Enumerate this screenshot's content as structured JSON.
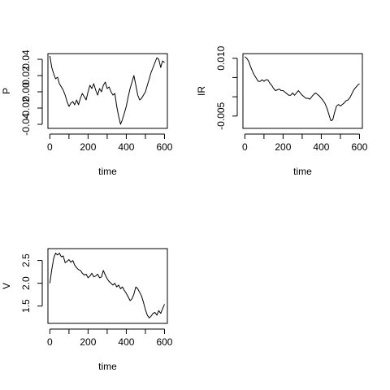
{
  "chart_data": [
    {
      "type": "line",
      "panel": "top-left",
      "title": "",
      "xlabel": "time",
      "ylabel": "P",
      "xlim": [
        -10,
        615
      ],
      "ylim": [
        -0.045,
        0.047
      ],
      "xticks": [
        0,
        200,
        400,
        600
      ],
      "xtick_minor": [
        0,
        100,
        200,
        300,
        400,
        500,
        600
      ],
      "yticks": [
        -0.04,
        -0.02,
        0.0,
        0.02,
        0.04
      ],
      "ytick_labels": [
        "-0.04",
        "-0.02",
        "0.00",
        "0.02",
        "0.04"
      ],
      "grid": false,
      "series": [
        {
          "x": [
            0,
            10,
            20,
            30,
            40,
            50,
            60,
            70,
            80,
            90,
            100,
            110,
            120,
            130,
            140,
            150,
            160,
            170,
            180,
            190,
            200,
            210,
            220,
            230,
            240,
            250,
            260,
            270,
            280,
            290,
            300,
            310,
            320,
            330,
            340,
            350,
            360,
            370,
            380,
            390,
            400,
            410,
            420,
            430,
            440,
            450,
            460,
            470,
            480,
            490,
            500,
            510,
            520,
            530,
            540,
            550,
            560,
            570,
            580,
            590,
            600
          ],
          "y": [
            0.044,
            0.03,
            0.022,
            0.016,
            0.018,
            0.01,
            0.006,
            0.002,
            -0.004,
            -0.012,
            -0.018,
            -0.014,
            -0.012,
            -0.016,
            -0.01,
            -0.016,
            -0.008,
            -0.002,
            -0.006,
            -0.01,
            0.0,
            0.008,
            0.004,
            0.01,
            0.002,
            -0.004,
            0.004,
            0.0,
            0.008,
            0.012,
            0.004,
            0.006,
            0.0,
            -0.004,
            -0.002,
            -0.018,
            -0.03,
            -0.04,
            -0.034,
            -0.026,
            -0.018,
            -0.006,
            0.004,
            0.012,
            0.02,
            0.008,
            -0.004,
            -0.01,
            -0.008,
            -0.004,
            0.0,
            0.008,
            0.016,
            0.024,
            0.03,
            0.036,
            0.042,
            0.04,
            0.03,
            0.038,
            0.036
          ]
        }
      ]
    },
    {
      "type": "line",
      "panel": "top-right",
      "title": "",
      "xlabel": "time",
      "ylabel": "IR",
      "xlim": [
        -10,
        615
      ],
      "ylim": [
        -0.0082,
        0.0112
      ],
      "xticks": [
        0,
        200,
        400,
        600
      ],
      "xtick_minor": [
        0,
        100,
        200,
        300,
        400,
        500,
        600
      ],
      "yticks": [
        -0.005,
        0.0,
        0.005,
        0.01
      ],
      "ytick_labels": [
        "-0.005",
        "",
        "",
        "0.010"
      ],
      "grid": false,
      "series": [
        {
          "x": [
            0,
            10,
            20,
            30,
            40,
            50,
            60,
            70,
            80,
            90,
            100,
            110,
            120,
            130,
            140,
            150,
            160,
            170,
            180,
            190,
            200,
            210,
            220,
            230,
            240,
            250,
            260,
            270,
            280,
            290,
            300,
            310,
            320,
            330,
            340,
            350,
            360,
            370,
            380,
            390,
            400,
            410,
            420,
            430,
            440,
            450,
            460,
            470,
            480,
            490,
            500,
            510,
            520,
            530,
            540,
            550,
            560,
            570,
            580,
            590,
            600
          ],
          "y": [
            0.0104,
            0.01,
            0.0092,
            0.0078,
            0.0066,
            0.0056,
            0.0048,
            0.004,
            0.004,
            0.0044,
            0.004,
            0.0044,
            0.0044,
            0.0036,
            0.003,
            0.0022,
            0.0016,
            0.0018,
            0.002,
            0.0016,
            0.0016,
            0.0012,
            0.0008,
            0.0004,
            0.0004,
            0.001,
            0.0004,
            0.001,
            0.0016,
            0.001,
            0.0004,
            0.0,
            -0.0004,
            -0.0004,
            -0.0006,
            0.0,
            0.0006,
            0.001,
            0.0006,
            0.0002,
            -0.0004,
            -0.001,
            -0.0018,
            -0.003,
            -0.0046,
            -0.0062,
            -0.006,
            -0.004,
            -0.0024,
            -0.002,
            -0.0024,
            -0.002,
            -0.0016,
            -0.001,
            -0.0008,
            -0.0002,
            0.0008,
            0.0018,
            0.0024,
            0.003,
            0.0034
          ]
        }
      ]
    },
    {
      "type": "line",
      "panel": "bottom-left",
      "title": "",
      "xlabel": "time",
      "ylabel": "V",
      "xlim": [
        -10,
        615
      ],
      "ylim": [
        1.12,
        2.76
      ],
      "xticks": [
        0,
        200,
        400,
        600
      ],
      "xtick_minor": [
        0,
        100,
        200,
        300,
        400,
        500,
        600
      ],
      "yticks": [
        1.5,
        2.0,
        2.5
      ],
      "ytick_labels": [
        "1.5",
        "2.0",
        "2.5"
      ],
      "grid": false,
      "series": [
        {
          "x": [
            0,
            10,
            20,
            30,
            40,
            50,
            60,
            70,
            80,
            90,
            100,
            110,
            120,
            130,
            140,
            150,
            160,
            170,
            180,
            190,
            200,
            210,
            220,
            230,
            240,
            250,
            260,
            270,
            280,
            290,
            300,
            310,
            320,
            330,
            340,
            350,
            360,
            370,
            380,
            390,
            400,
            410,
            420,
            430,
            440,
            450,
            460,
            470,
            480,
            490,
            500,
            510,
            520,
            530,
            540,
            550,
            560,
            570,
            580,
            590,
            600
          ],
          "y": [
            2.0,
            2.3,
            2.55,
            2.66,
            2.62,
            2.66,
            2.58,
            2.6,
            2.45,
            2.48,
            2.52,
            2.46,
            2.5,
            2.4,
            2.34,
            2.3,
            2.28,
            2.22,
            2.18,
            2.2,
            2.12,
            2.16,
            2.22,
            2.14,
            2.16,
            2.2,
            2.12,
            2.14,
            2.28,
            2.18,
            2.1,
            2.04,
            2.0,
            1.96,
            2.0,
            1.92,
            1.96,
            1.88,
            1.92,
            1.84,
            1.78,
            1.7,
            1.62,
            1.66,
            1.76,
            1.92,
            1.88,
            1.8,
            1.72,
            1.58,
            1.42,
            1.3,
            1.24,
            1.28,
            1.34,
            1.36,
            1.3,
            1.4,
            1.34,
            1.44,
            1.54
          ]
        }
      ]
    }
  ]
}
